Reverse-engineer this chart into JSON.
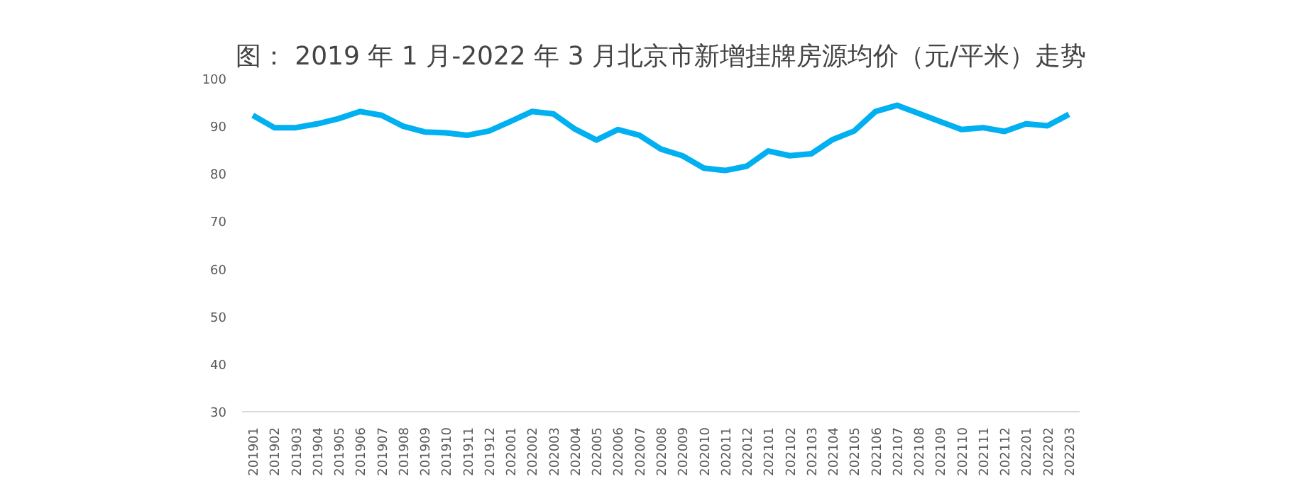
{
  "chart_data": {
    "type": "line",
    "title": "图： 2019 年 1 月-2022 年 3 月北京市新增挂牌房源均价（元/平米）走势",
    "categories": [
      "201901",
      "201902",
      "201903",
      "201904",
      "201905",
      "201906",
      "201907",
      "201908",
      "201909",
      "201910",
      "201911",
      "201912",
      "202001",
      "202002",
      "202003",
      "202004",
      "202005",
      "202006",
      "202007",
      "202008",
      "202009",
      "202010",
      "202011",
      "202012",
      "202101",
      "202102",
      "202103",
      "202104",
      "202105",
      "202106",
      "202107",
      "202108",
      "202109",
      "202110",
      "202111",
      "202112",
      "202201",
      "202202",
      "202203"
    ],
    "series": [
      {
        "color": "#00b0f0",
        "values": [
          92.3,
          89.7,
          89.7,
          90.5,
          91.6,
          93.1,
          92.3,
          90,
          88.8,
          88.6,
          88.1,
          89,
          91,
          93.1,
          92.6,
          89.4,
          87.1,
          89.3,
          88.1,
          85.2,
          83.8,
          81.2,
          80.7,
          81.6,
          84.8,
          83.8,
          84.2,
          87.2,
          89,
          93.1,
          94.4,
          92.7,
          91,
          89.3,
          89.7,
          88.9,
          90.5,
          90.1,
          92.5
        ]
      }
    ],
    "ylim": [
      30,
      100
    ],
    "yticks": [
      30,
      40,
      50,
      60,
      70,
      80,
      90,
      100
    ],
    "marker": "none",
    "line_style": "solid"
  }
}
